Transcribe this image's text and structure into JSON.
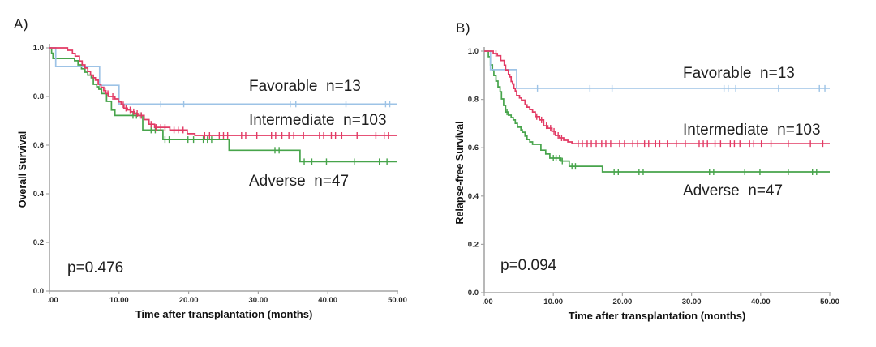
{
  "figure": {
    "background": "#ffffff",
    "axis_color": "#a6a6a6",
    "text_color": "#1f1f1f"
  },
  "chart_data": [
    {
      "type": "line",
      "subtype": "kaplan-meier-step",
      "corner_label": "A)",
      "xlabel": "Time after transplantation (months)",
      "ylabel": "Overall Survival",
      "annotation_p_value": "p=0.476",
      "xlim": [
        0,
        50
      ],
      "ylim": [
        0.0,
        1.0
      ],
      "xtick_labels": [
        ".00",
        "10.00",
        "20.00",
        "30.00",
        "40.00",
        "50.00"
      ],
      "ytick_labels": [
        "0.0",
        "0.2",
        "0.4",
        "0.6",
        "0.8",
        "1.0"
      ],
      "grid": false,
      "legend_position": "inline-annotations",
      "series": [
        {
          "name": "Favorable",
          "legend_label": "Favorable  n=13",
          "n": 13,
          "color": "#9dc3e6",
          "steps_time_survival": [
            [
              0,
              1.0
            ],
            [
              0.9,
              0.923
            ],
            [
              7.2,
              0.846
            ],
            [
              10.0,
              0.769
            ]
          ],
          "censor_times": [
            16.0,
            19.3,
            34.6,
            35.4,
            42.6,
            48.3,
            48.9
          ]
        },
        {
          "name": "Intermediate",
          "legend_label": "Intermediate  n=103",
          "n": 103,
          "color": "#e23a64",
          "steps_time_survival": [
            [
              0,
              1.0
            ],
            [
              2.6,
              0.99
            ],
            [
              3.3,
              0.977
            ],
            [
              3.7,
              0.966
            ],
            [
              4.3,
              0.946
            ],
            [
              4.7,
              0.93
            ],
            [
              5.1,
              0.917
            ],
            [
              5.5,
              0.903
            ],
            [
              5.9,
              0.888
            ],
            [
              6.3,
              0.877
            ],
            [
              6.6,
              0.867
            ],
            [
              7.0,
              0.85
            ],
            [
              7.4,
              0.838
            ],
            [
              7.8,
              0.824
            ],
            [
              8.1,
              0.812
            ],
            [
              8.5,
              0.8
            ],
            [
              9.4,
              0.79
            ],
            [
              9.9,
              0.778
            ],
            [
              10.3,
              0.766
            ],
            [
              10.7,
              0.752
            ],
            [
              11.2,
              0.745
            ],
            [
              11.7,
              0.737
            ],
            [
              12.2,
              0.73
            ],
            [
              12.7,
              0.722
            ],
            [
              13.6,
              0.705
            ],
            [
              14.3,
              0.686
            ],
            [
              15.1,
              0.673
            ],
            [
              17.3,
              0.662
            ],
            [
              19.8,
              0.647
            ],
            [
              20.9,
              0.64
            ]
          ],
          "censor_times": [
            8.0,
            8.4,
            9.1,
            10.6,
            11.0,
            11.6,
            12.1,
            12.6,
            13.2,
            14.6,
            15.3,
            16.0,
            16.6,
            17.9,
            18.5,
            19.2,
            22.3,
            23.0,
            24.4,
            25.0,
            25.6,
            27.6,
            28.2,
            29.8,
            31.9,
            32.5,
            33.4,
            34.4,
            35.1,
            36.5,
            38.8,
            39.4,
            40.5,
            41.1,
            42.0,
            44.2,
            46.9,
            48.1,
            48.7
          ]
        },
        {
          "name": "Adverse",
          "legend_label": "Adverse  n=47",
          "n": 47,
          "color": "#47a44b",
          "steps_time_survival": [
            [
              0,
              1.0
            ],
            [
              0.3,
              0.978
            ],
            [
              0.5,
              0.956
            ],
            [
              3.6,
              0.947
            ],
            [
              4.1,
              0.93
            ],
            [
              4.6,
              0.914
            ],
            [
              5.1,
              0.9
            ],
            [
              5.5,
              0.888
            ],
            [
              6.0,
              0.877
            ],
            [
              6.3,
              0.85
            ],
            [
              6.8,
              0.84
            ],
            [
              7.1,
              0.83
            ],
            [
              7.5,
              0.812
            ],
            [
              8.2,
              0.78
            ],
            [
              8.9,
              0.744
            ],
            [
              9.4,
              0.722
            ],
            [
              13.4,
              0.662
            ],
            [
              16.3,
              0.623
            ],
            [
              25.8,
              0.579
            ],
            [
              36.0,
              0.532
            ]
          ],
          "censor_times": [
            12.0,
            12.5,
            13.0,
            14.6,
            15.2,
            16.6,
            17.2,
            19.9,
            20.7,
            22.1,
            22.7,
            23.3,
            32.4,
            33.0,
            36.6,
            37.7,
            39.8,
            43.8,
            47.4,
            48.5
          ]
        }
      ]
    },
    {
      "type": "line",
      "subtype": "kaplan-meier-step",
      "corner_label": "B)",
      "xlabel": "Time after transplantation (months)",
      "ylabel": "Relapse-free Survival",
      "annotation_p_value": "p=0.094",
      "xlim": [
        0,
        50
      ],
      "ylim": [
        0.0,
        1.0
      ],
      "xtick_labels": [
        ".00",
        "10.00",
        "20.00",
        "30.00",
        "40.00",
        "50.00"
      ],
      "ytick_labels": [
        "0.0",
        "0.2",
        "0.4",
        "0.6",
        "0.8",
        "1.0"
      ],
      "grid": false,
      "legend_position": "inline-annotations",
      "series": [
        {
          "name": "Favorable",
          "legend_label": "Favorable  n=13",
          "n": 13,
          "color": "#9dc3e6",
          "steps_time_survival": [
            [
              0,
              1.0
            ],
            [
              0.9,
              0.923
            ],
            [
              4.7,
              0.846
            ]
          ],
          "censor_times": [
            7.7,
            15.3,
            18.5,
            34.7,
            35.3,
            36.4,
            42.6,
            48.5,
            49.3
          ]
        },
        {
          "name": "Intermediate",
          "legend_label": "Intermediate  n=103",
          "n": 103,
          "color": "#e23a64",
          "steps_time_survival": [
            [
              0,
              1.0
            ],
            [
              1.3,
              0.99
            ],
            [
              1.9,
              0.981
            ],
            [
              2.4,
              0.961
            ],
            [
              2.9,
              0.942
            ],
            [
              3.1,
              0.922
            ],
            [
              3.5,
              0.903
            ],
            [
              3.7,
              0.893
            ],
            [
              3.9,
              0.874
            ],
            [
              4.1,
              0.864
            ],
            [
              4.3,
              0.845
            ],
            [
              4.5,
              0.835
            ],
            [
              4.7,
              0.816
            ],
            [
              5.1,
              0.806
            ],
            [
              5.4,
              0.797
            ],
            [
              5.9,
              0.778
            ],
            [
              6.2,
              0.768
            ],
            [
              6.6,
              0.758
            ],
            [
              7.0,
              0.748
            ],
            [
              7.4,
              0.729
            ],
            [
              8.0,
              0.715
            ],
            [
              8.6,
              0.691
            ],
            [
              9.2,
              0.681
            ],
            [
              9.8,
              0.668
            ],
            [
              10.3,
              0.651
            ],
            [
              10.9,
              0.641
            ],
            [
              11.5,
              0.631
            ],
            [
              12.1,
              0.624
            ],
            [
              12.7,
              0.617
            ]
          ],
          "censor_times": [
            1.7,
            7.6,
            8.3,
            9.0,
            9.6,
            10.1,
            10.7,
            11.2,
            13.6,
            14.2,
            14.9,
            15.5,
            16.2,
            17.0,
            17.6,
            18.3,
            19.6,
            20.3,
            21.5,
            22.2,
            23.2,
            23.8,
            24.8,
            25.4,
            26.5,
            27.8,
            29.1,
            31.1,
            31.7,
            32.3,
            33.4,
            34.2,
            35.6,
            36.2,
            37.0,
            38.4,
            39.0,
            40.1,
            41.5,
            44.0,
            47.2,
            49.0
          ]
        },
        {
          "name": "Adverse",
          "legend_label": "Adverse  n=47",
          "n": 47,
          "color": "#47a44b",
          "steps_time_survival": [
            [
              0,
              1.0
            ],
            [
              0.6,
              0.977
            ],
            [
              0.9,
              0.943
            ],
            [
              1.2,
              0.92
            ],
            [
              1.4,
              0.899
            ],
            [
              1.7,
              0.876
            ],
            [
              2.0,
              0.852
            ],
            [
              2.3,
              0.832
            ],
            [
              2.5,
              0.802
            ],
            [
              2.8,
              0.775
            ],
            [
              3.1,
              0.748
            ],
            [
              3.5,
              0.735
            ],
            [
              3.9,
              0.725
            ],
            [
              4.2,
              0.715
            ],
            [
              4.5,
              0.701
            ],
            [
              4.8,
              0.685
            ],
            [
              5.3,
              0.674
            ],
            [
              5.5,
              0.664
            ],
            [
              5.9,
              0.648
            ],
            [
              6.2,
              0.634
            ],
            [
              6.6,
              0.624
            ],
            [
              7.0,
              0.614
            ],
            [
              8.2,
              0.59
            ],
            [
              8.9,
              0.574
            ],
            [
              9.5,
              0.557
            ],
            [
              11.1,
              0.545
            ],
            [
              12.3,
              0.523
            ],
            [
              17.1,
              0.5
            ]
          ],
          "censor_times": [
            3.3,
            10.0,
            10.4,
            10.9,
            11.3,
            12.7,
            13.2,
            18.8,
            19.4,
            22.4,
            23.0,
            32.6,
            33.2,
            37.7,
            39.9,
            44.0,
            47.5,
            48.1
          ]
        }
      ]
    }
  ]
}
